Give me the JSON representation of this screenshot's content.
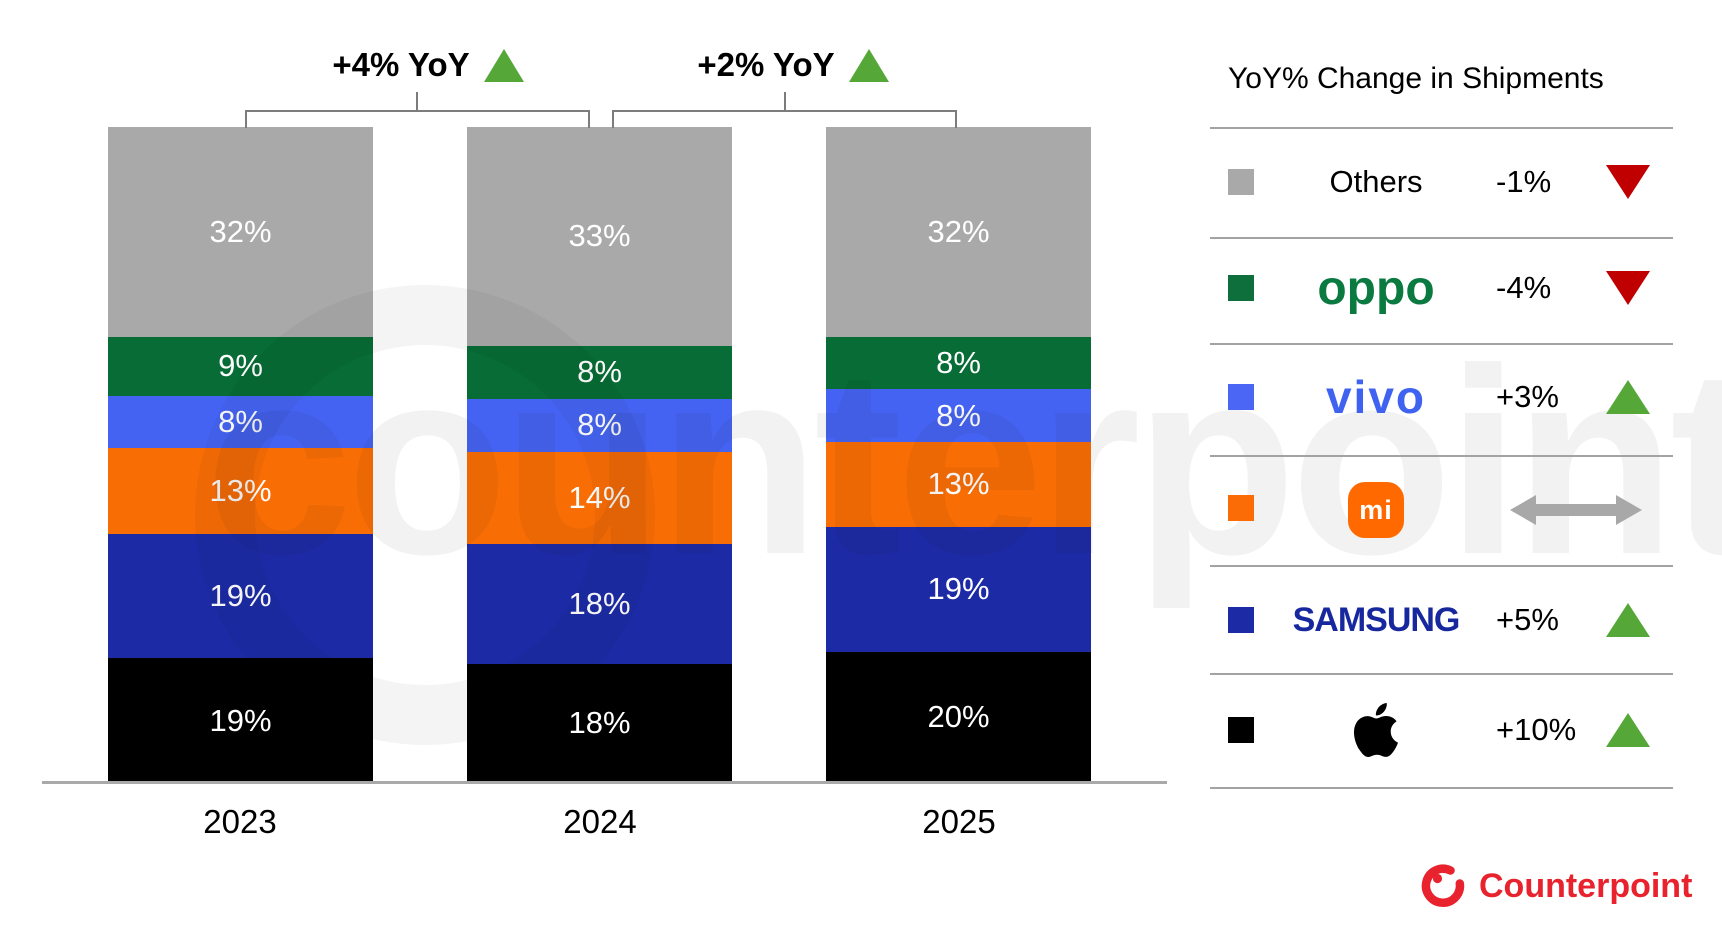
{
  "watermark": "counterpoint",
  "chart_data": {
    "type": "bar",
    "stacked": true,
    "categories": [
      "2023",
      "2024",
      "2025"
    ],
    "unit": "%",
    "ylim": [
      0,
      100
    ],
    "value_labels": true,
    "legend_position": "right",
    "series": [
      {
        "name": "Apple",
        "color": "#000000",
        "values": [
          19,
          18,
          20
        ]
      },
      {
        "name": "Samsung",
        "color": "#1c2ba5",
        "values": [
          19,
          18,
          19
        ]
      },
      {
        "name": "Xiaomi",
        "color": "#f96d05",
        "values": [
          13,
          14,
          13
        ]
      },
      {
        "name": "vivo",
        "color": "#4463f2",
        "values": [
          8,
          8,
          8
        ]
      },
      {
        "name": "OPPO",
        "color": "#076c35",
        "values": [
          9,
          8,
          8
        ]
      },
      {
        "name": "Others",
        "color": "#a9a9a9",
        "values": [
          32,
          33,
          32
        ]
      }
    ],
    "annotations": [
      {
        "label": "+4% YoY",
        "direction": "up",
        "between": [
          "2023",
          "2024"
        ]
      },
      {
        "label": "+2% YoY",
        "direction": "up",
        "between": [
          "2024",
          "2025"
        ]
      }
    ]
  },
  "legend": {
    "title": "YoY% Change in Shipments",
    "rows": [
      {
        "brand": "Others",
        "label": "Others",
        "change": "-1%",
        "direction": "down"
      },
      {
        "brand": "OPPO",
        "label": "oppo",
        "change": "-4%",
        "direction": "down"
      },
      {
        "brand": "vivo",
        "label": "vivo",
        "change": "+3%",
        "direction": "up"
      },
      {
        "brand": "Xiaomi",
        "label": "mi",
        "change": "",
        "direction": "flat"
      },
      {
        "brand": "Samsung",
        "label": "SAMSUNG",
        "change": "+5%",
        "direction": "up"
      },
      {
        "brand": "Apple",
        "label": "",
        "change": "+10%",
        "direction": "up"
      }
    ]
  },
  "footer": {
    "logo_text": "Counterpoint"
  },
  "colors": {
    "up_green": "#55a838",
    "down_red": "#c00000",
    "flat_gray": "#a8a8a8",
    "bracket_gray": "#7c7c7c",
    "counterpoint_red": "#e8232e",
    "oppo_logo_green": "#0a7a41",
    "vivo_logo_blue": "#3f63f0",
    "samsung_logo_blue": "#17289e",
    "xiaomi_badge_orange": "#ff6900"
  }
}
